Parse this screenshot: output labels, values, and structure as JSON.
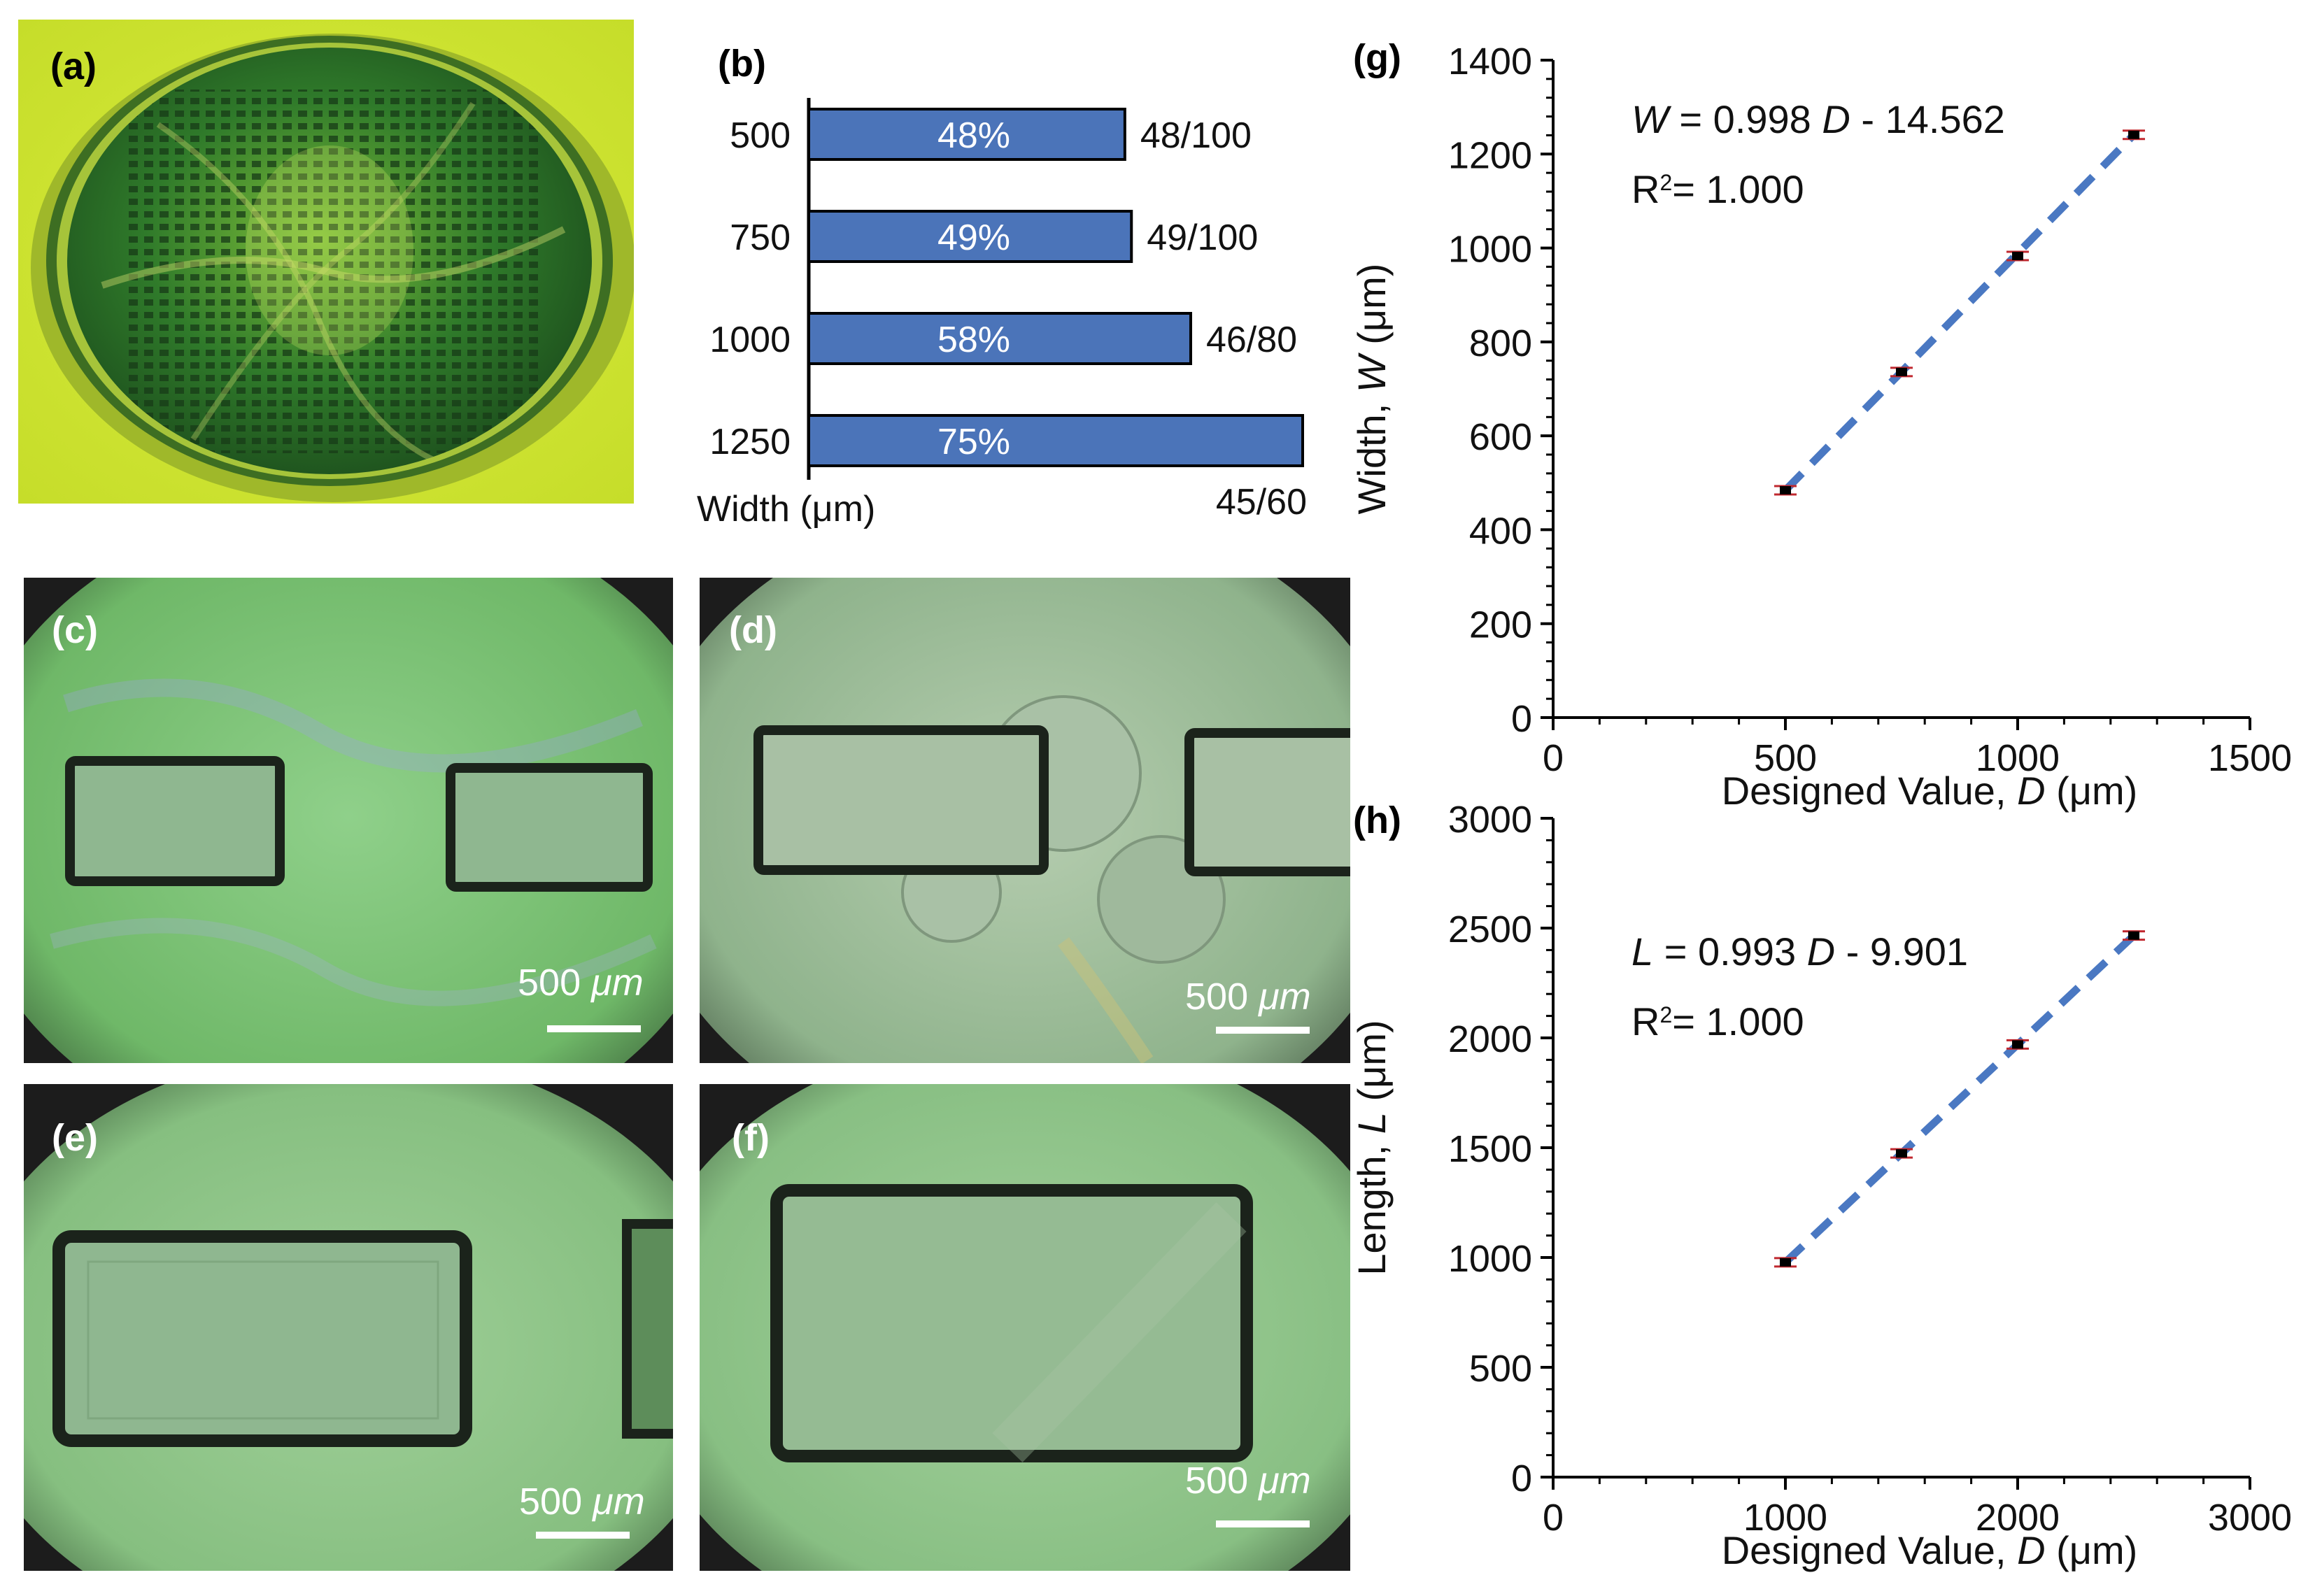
{
  "panels": {
    "a": {
      "label": "(a)"
    },
    "b": {
      "label": "(b)"
    },
    "c": {
      "label": "(c)",
      "scale_value": "500",
      "scale_unit": "μm"
    },
    "d": {
      "label": "(d)",
      "scale_value": "500",
      "scale_unit": "μm"
    },
    "e": {
      "label": "(e)",
      "scale_value": "500",
      "scale_unit": "μm"
    },
    "f": {
      "label": "(f)",
      "scale_value": "500",
      "scale_unit": "μm"
    },
    "g": {
      "label": "(g)"
    },
    "h": {
      "label": "(h)"
    }
  },
  "colors": {
    "bar": "#4b74b9",
    "trend": "#4a78c2",
    "marker": "#c0282f",
    "marker_dot": "#000000"
  },
  "chart_data": [
    {
      "id": "b",
      "type": "bar",
      "orientation": "horizontal",
      "categories": [
        "500",
        "750",
        "1000",
        "1250"
      ],
      "values": [
        48,
        49,
        58,
        75
      ],
      "bar_labels": [
        "48%",
        "49%",
        "58%",
        "75%"
      ],
      "ratio_labels": [
        "48/100",
        "49/100",
        "46/80",
        "45/60"
      ],
      "xlabel": "Width (μm)",
      "xlim": [
        0,
        75
      ]
    },
    {
      "id": "g",
      "type": "scatter",
      "x": [
        500,
        750,
        1000,
        1250
      ],
      "y": [
        484,
        736,
        983,
        1241
      ],
      "trend": {
        "x": [
          500,
          1250
        ]
      },
      "equation": {
        "var": "W",
        "text": " = 0.998 ",
        "d": "D",
        "rest": " - 14.562"
      },
      "r2": {
        "prefix": "R",
        "sup": "2",
        "rest": "= 1.000"
      },
      "xlabel": {
        "prefix": "Designed Value, ",
        "var": "D",
        "suffix": " (μm)"
      },
      "ylabel": {
        "prefix": "Width, ",
        "var": "W",
        "suffix": "  (μm)"
      },
      "xlim": [
        0,
        1500
      ],
      "ylim": [
        0,
        1400
      ],
      "xticks": [
        0,
        500,
        1000,
        1500
      ],
      "yticks": [
        0,
        200,
        400,
        600,
        800,
        1000,
        1200,
        1400
      ]
    },
    {
      "id": "h",
      "type": "scatter",
      "x": [
        1000,
        1500,
        2000,
        2500
      ],
      "y": [
        978,
        1474,
        1970,
        2466
      ],
      "trend": {
        "x": [
          1000,
          2500
        ]
      },
      "equation": {
        "var": "L",
        "text": " = 0.993 ",
        "d": "D",
        "rest": " - 9.901"
      },
      "r2": {
        "prefix": "R",
        "sup": "2",
        "rest": "= 1.000"
      },
      "xlabel": {
        "prefix": "Designed Value, ",
        "var": "D",
        "suffix": " (μm)"
      },
      "ylabel": {
        "prefix": "Length, ",
        "var": "L",
        "suffix": " (μm)"
      },
      "xlim": [
        0,
        3000
      ],
      "ylim": [
        0,
        3000
      ],
      "xticks": [
        0,
        1000,
        2000,
        3000
      ],
      "yticks": [
        0,
        500,
        1000,
        1500,
        2000,
        2500,
        3000
      ]
    }
  ]
}
